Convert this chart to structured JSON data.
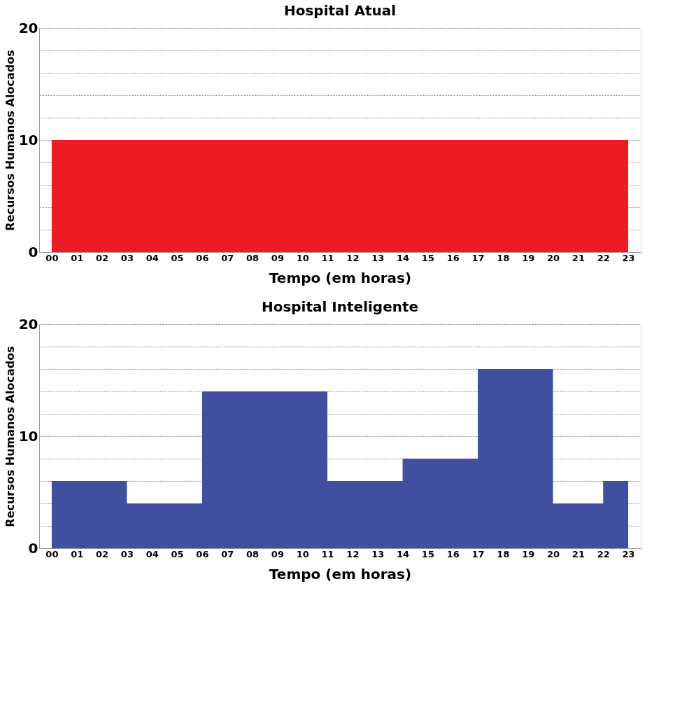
{
  "chart_data": [
    {
      "type": "area",
      "title": "Hospital Atual",
      "xlabel": "Tempo (em horas)",
      "ylabel": "Recursos Humanos Alocados",
      "categories": [
        "00",
        "01",
        "02",
        "03",
        "04",
        "05",
        "06",
        "07",
        "08",
        "09",
        "10",
        "11",
        "12",
        "13",
        "14",
        "15",
        "16",
        "17",
        "18",
        "19",
        "20",
        "21",
        "22",
        "23"
      ],
      "series": [
        {
          "color": "#ed1c24",
          "values": [
            10,
            10,
            10,
            10,
            10,
            10,
            10,
            10,
            10,
            10,
            10,
            10,
            10,
            10,
            10,
            10,
            10,
            10,
            10,
            10,
            10,
            10,
            10,
            10
          ]
        }
      ],
      "ylim": [
        0,
        20
      ],
      "yticks": [
        0,
        {
          "value": 2,
          "label": null
        },
        {
          "value": 4,
          "label": null
        },
        {
          "value": 6,
          "label": null
        },
        {
          "value": 8,
          "label": null
        },
        10,
        {
          "value": 12,
          "label": null
        },
        {
          "value": 14,
          "label": null
        },
        {
          "value": 16,
          "label": null
        },
        {
          "value": 18,
          "label": null
        },
        20
      ],
      "grid": "y"
    },
    {
      "type": "area",
      "title": "Hospital Inteligente",
      "xlabel": "Tempo (em horas)",
      "ylabel": "Recursos Humanos Alocados",
      "categories": [
        "00",
        "01",
        "02",
        "03",
        "04",
        "05",
        "06",
        "07",
        "08",
        "09",
        "10",
        "11",
        "12",
        "13",
        "14",
        "15",
        "16",
        "17",
        "18",
        "19",
        "20",
        "21",
        "22",
        "23"
      ],
      "series": [
        {
          "color": "#404f9f",
          "values": [
            6,
            6,
            6,
            4,
            4,
            4,
            14,
            14,
            14,
            14,
            14,
            6,
            6,
            6,
            8,
            8,
            8,
            16,
            16,
            16,
            4,
            4,
            6,
            6
          ]
        }
      ],
      "ylim": [
        0,
        20
      ],
      "yticks": [
        0,
        {
          "value": 2,
          "label": null
        },
        {
          "value": 4,
          "label": null
        },
        {
          "value": 6,
          "label": null
        },
        {
          "value": 8,
          "label": null
        },
        10,
        {
          "value": 12,
          "label": null
        },
        {
          "value": 14,
          "label": null
        },
        {
          "value": 16,
          "label": null
        },
        {
          "value": 18,
          "label": null
        },
        20
      ],
      "grid": "y"
    }
  ]
}
